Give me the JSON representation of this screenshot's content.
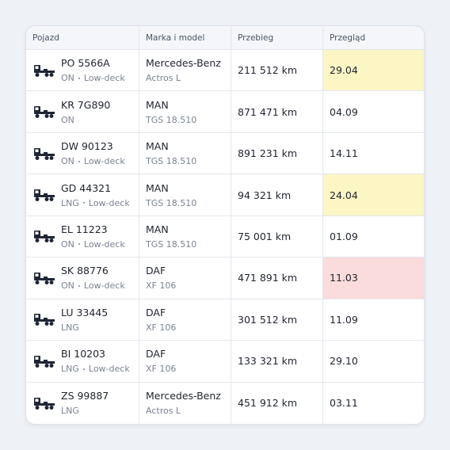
{
  "table": {
    "header": [
      "Pojazd",
      "Marka i model",
      "Przebieg",
      "Przegląd"
    ],
    "rows": [
      {
        "plate": "PO 5566A",
        "tags": [
          "ON",
          "Low-deck"
        ],
        "make": "Mercedes-Benz",
        "model": "Actros L",
        "mileage": "211 512 km",
        "inspection": "29.04",
        "highlight": "#fcf5c4"
      },
      {
        "plate": "KR 7G890",
        "tags": [
          "ON"
        ],
        "make": "MAN",
        "model": "TGS 18.510",
        "mileage": "871 471 km",
        "inspection": "04.09"
      },
      {
        "plate": "DW 90123",
        "tags": [
          "ON",
          "Low-deck"
        ],
        "make": "MAN",
        "model": "TGS 18.510",
        "mileage": "891 231 km",
        "inspection": "14.11"
      },
      {
        "plate": "GD 44321",
        "tags": [
          "LNG",
          "Low-deck"
        ],
        "make": "MAN",
        "model": "TGS 18.510",
        "mileage": "94 321 km",
        "inspection": "24.04",
        "highlight": "#fcf5c4"
      },
      {
        "plate": "EL 11223",
        "tags": [
          "ON",
          "Low-deck"
        ],
        "make": "MAN",
        "model": "TGS 18.510",
        "mileage": "75 001 km",
        "inspection": "01.09"
      },
      {
        "plate": "SK 88776",
        "tags": [
          "ON",
          "Low-deck"
        ],
        "make": "DAF",
        "model": "XF 106",
        "mileage": "471 891 km",
        "inspection": "11.03",
        "highlight": "#fbdcdc"
      },
      {
        "plate": "LU 33445",
        "tags": [
          "LNG"
        ],
        "make": "DAF",
        "model": "XF 106",
        "mileage": "301 512 km",
        "inspection": "11.09"
      },
      {
        "plate": "BI 10203",
        "tags": [
          "LNG",
          "Low-deck"
        ],
        "make": "DAF",
        "model": "XF 106",
        "mileage": "133 321 km",
        "inspection": "29.10"
      },
      {
        "plate": "ZS 99887",
        "tags": [
          "LNG"
        ],
        "make": "Mercedes-Benz",
        "model": "Actros L",
        "mileage": "451 912 km",
        "inspection": "03.11"
      }
    ]
  }
}
